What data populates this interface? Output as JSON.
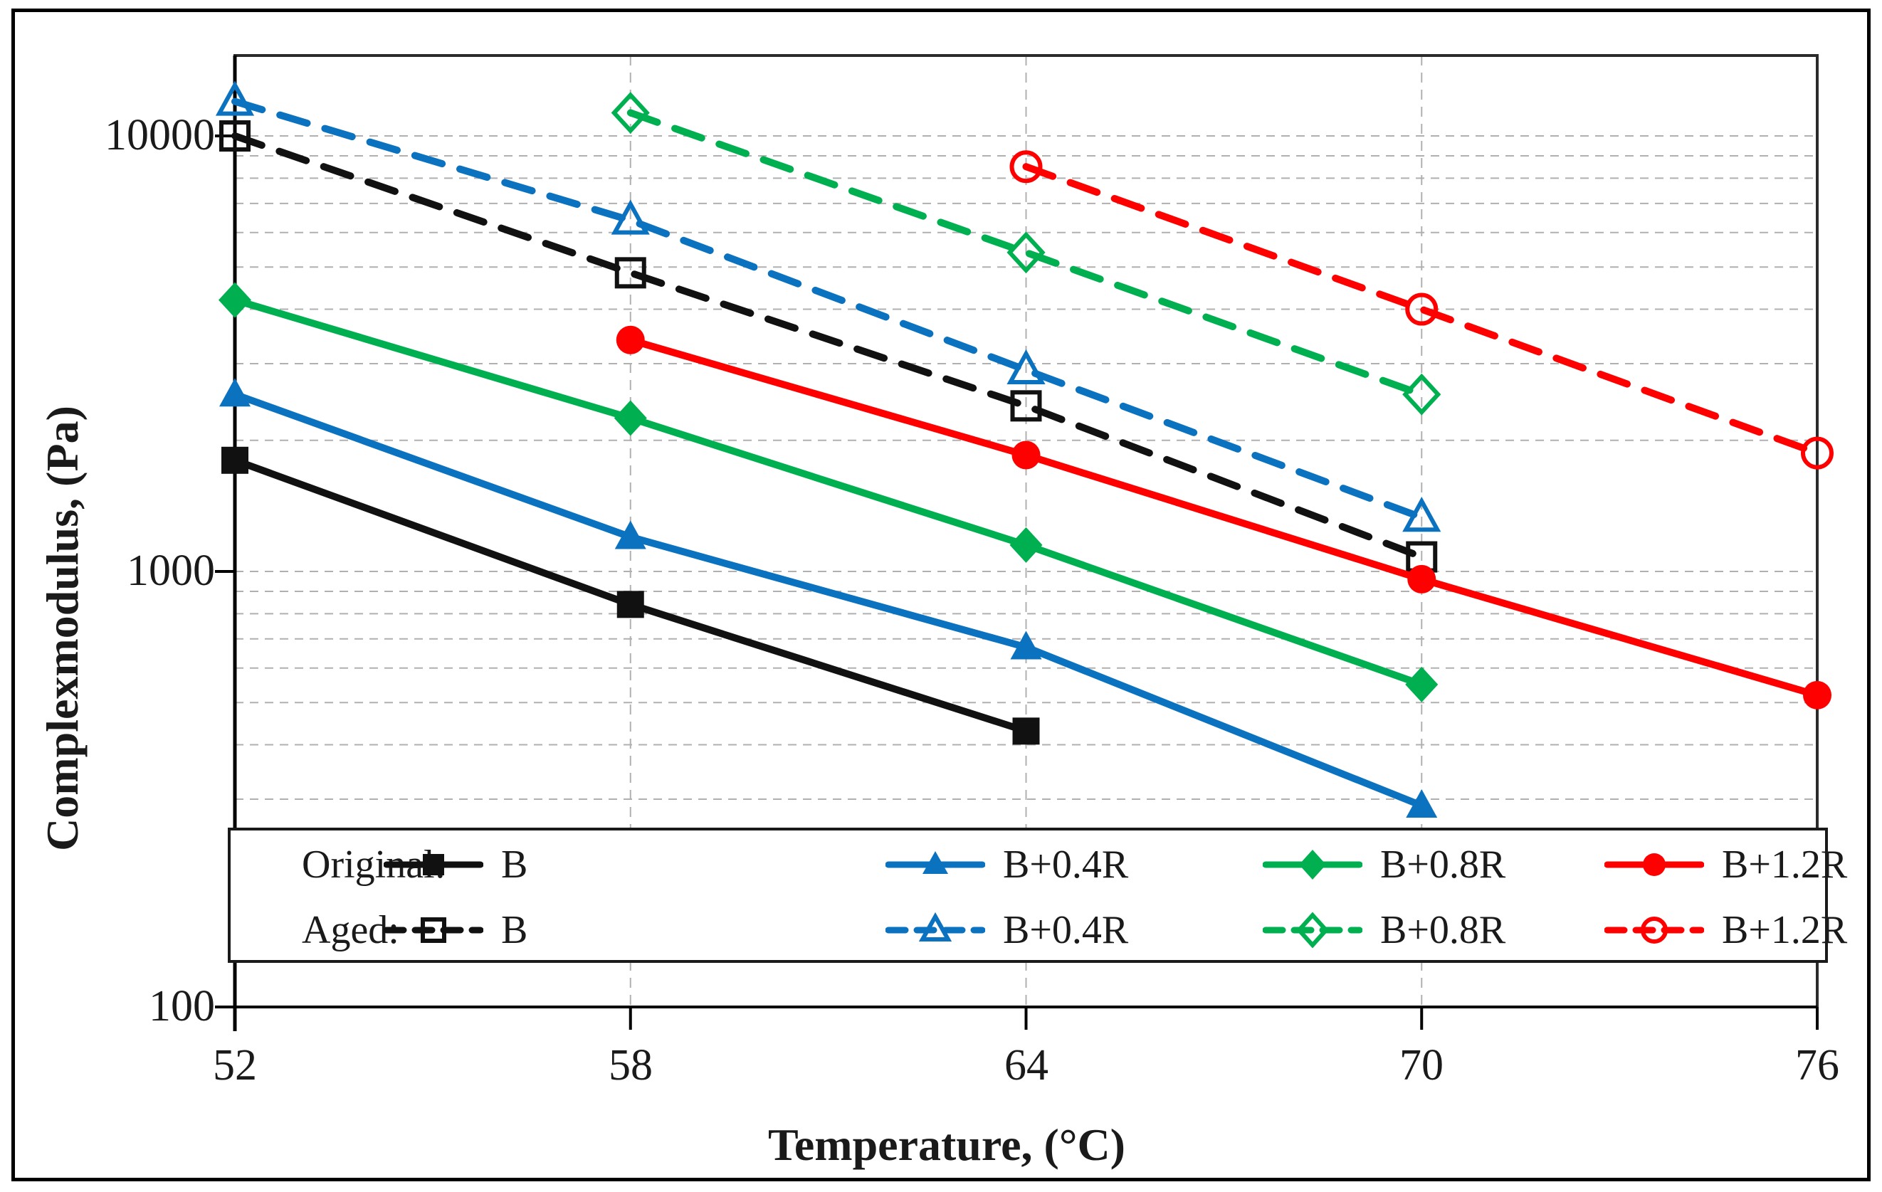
{
  "figure": {
    "background": "#ffffff",
    "border_color": "#000000"
  },
  "axes": {
    "x": {
      "title": "Temperature, (°C)",
      "ticks": [
        52,
        58,
        64,
        70,
        76
      ],
      "range": [
        52,
        76
      ],
      "scale": "linear"
    },
    "y": {
      "title": "Complexmodulus, (Pa)",
      "ticks": [
        10000,
        1000,
        100
      ],
      "range": [
        100,
        15300
      ],
      "scale": "log",
      "minor_gridlines": [
        200,
        300,
        400,
        500,
        600,
        700,
        800,
        900,
        1000,
        2000,
        3000,
        4000,
        5000,
        6000,
        7000,
        8000,
        9000,
        10000
      ]
    }
  },
  "legend": {
    "position": "bottom-inside",
    "rows": [
      {
        "group_label": "Original:",
        "line_style": "solid",
        "entries": [
          "B",
          "B+0.4R",
          "B+0.8R",
          "B+1.2R"
        ]
      },
      {
        "group_label": "Aged:",
        "line_style": "dashed",
        "entries": [
          "B",
          "B+0.4R",
          "B+0.8R",
          "B+1.2R"
        ]
      }
    ]
  },
  "colors": {
    "black": "#111111",
    "blue": "#0b72c0",
    "green": "#00b050",
    "red": "#ff0000",
    "gridline": "#b0b0b0",
    "frame": "#2b2b2b"
  },
  "chart_data": {
    "type": "line",
    "title": "",
    "xlabel": "Temperature, (°C)",
    "ylabel": "Complexmodulus, (Pa)",
    "xlim": [
      52,
      76
    ],
    "ylim": [
      100,
      15300
    ],
    "y_scale": "log",
    "grid": "minor-log-horizontal-and-vertical-ticks",
    "series": [
      {
        "name": "B",
        "group": "Original",
        "color": "#111111",
        "line": "solid",
        "marker": "square",
        "marker_fill": "filled",
        "points": [
          [
            52,
            1800
          ],
          [
            58,
            840
          ],
          [
            64,
            430
          ]
        ]
      },
      {
        "name": "B+0.4R",
        "group": "Original",
        "color": "#0b72c0",
        "line": "solid",
        "marker": "triangle",
        "marker_fill": "filled",
        "points": [
          [
            52,
            2550
          ],
          [
            58,
            1200
          ],
          [
            64,
            670
          ],
          [
            70,
            290
          ]
        ]
      },
      {
        "name": "B+0.8R",
        "group": "Original",
        "color": "#00b050",
        "line": "solid",
        "marker": "diamond",
        "marker_fill": "filled",
        "points": [
          [
            52,
            4200
          ],
          [
            58,
            2250
          ],
          [
            64,
            1150
          ],
          [
            70,
            550
          ]
        ]
      },
      {
        "name": "B+1.2R",
        "group": "Original",
        "color": "#ff0000",
        "line": "solid",
        "marker": "circle",
        "marker_fill": "filled",
        "points": [
          [
            58,
            3400
          ],
          [
            64,
            1850
          ],
          [
            70,
            960
          ],
          [
            76,
            520
          ]
        ]
      },
      {
        "name": "B",
        "group": "Aged",
        "color": "#111111",
        "line": "dashed",
        "marker": "square",
        "marker_fill": "open",
        "points": [
          [
            52,
            10000
          ],
          [
            58,
            4850
          ],
          [
            64,
            2400
          ],
          [
            70,
            1080
          ]
        ]
      },
      {
        "name": "B+0.4R",
        "group": "Aged",
        "color": "#0b72c0",
        "line": "dashed",
        "marker": "triangle",
        "marker_fill": "open",
        "points": [
          [
            52,
            12000
          ],
          [
            58,
            6400
          ],
          [
            64,
            2900
          ],
          [
            70,
            1330
          ]
        ]
      },
      {
        "name": "B+0.8R",
        "group": "Aged",
        "color": "#00b050",
        "line": "dashed",
        "marker": "diamond",
        "marker_fill": "open",
        "points": [
          [
            58,
            11300
          ],
          [
            64,
            5400
          ],
          [
            70,
            2550
          ]
        ]
      },
      {
        "name": "B+1.2R",
        "group": "Aged",
        "color": "#ff0000",
        "line": "dashed",
        "marker": "circle",
        "marker_fill": "open",
        "points": [
          [
            64,
            8500
          ],
          [
            70,
            4000
          ],
          [
            76,
            1870
          ]
        ]
      }
    ]
  }
}
